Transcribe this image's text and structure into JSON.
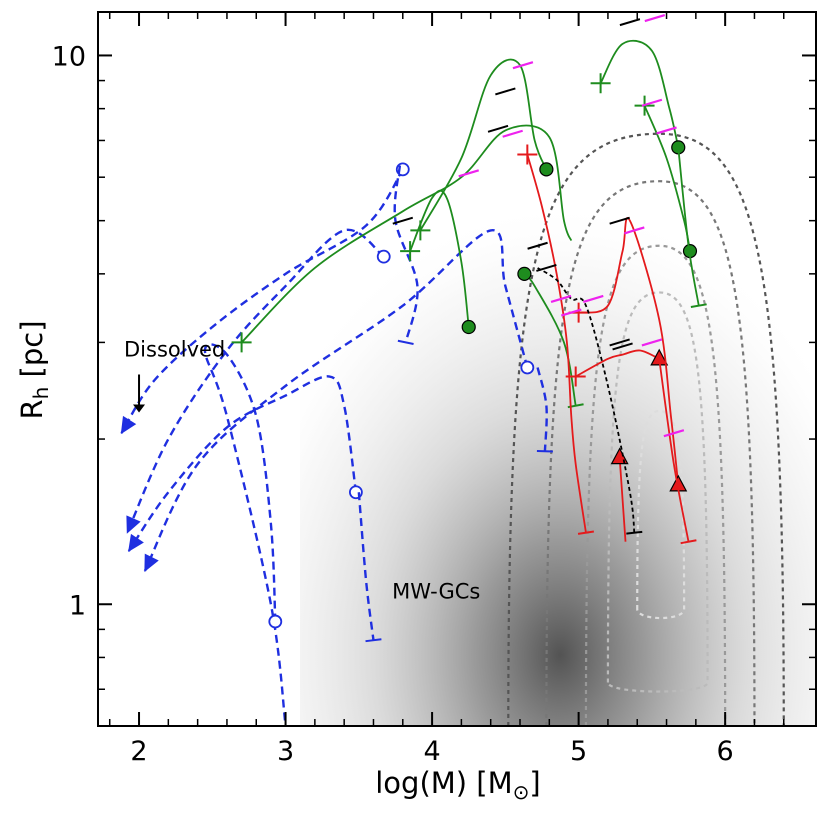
{
  "chart_data": {
    "type": "line",
    "title": "",
    "xlabel": "log(M) [M",
    "xlabel_suffix": "]",
    "xlabel_sub": "⊙",
    "ylabel": "R",
    "ylabel_sub": "h",
    "ylabel_suffix": " [pc]",
    "xlim": [
      1.72,
      6.62
    ],
    "ylim_log": [
      0.6,
      12.0
    ],
    "y_scale": "log",
    "x_ticks": [
      2,
      3,
      4,
      5,
      6
    ],
    "x_tick_labels": [
      "2",
      "3",
      "4",
      "5",
      "6"
    ],
    "y_ticks": [
      1,
      10
    ],
    "y_tick_labels": [
      "1",
      "10"
    ],
    "annotations": {
      "dissolved": "Dissolved",
      "mwgcs": "MW-GCs"
    },
    "annotation_positions": {
      "dissolved": [
        2.0,
        2.9
      ],
      "mwgcs": [
        4.0,
        1.05
      ]
    },
    "density_contours": {
      "center": [
        5.55,
        1.65
      ],
      "levels": [
        {
          "x": [
            4.52,
            6.4
          ],
          "y": [
            0.6,
            7.2
          ],
          "color": "#555555"
        },
        {
          "x": [
            4.78,
            6.2
          ],
          "y": [
            0.6,
            5.9
          ],
          "color": "#777777"
        },
        {
          "x": [
            5.05,
            6.0
          ],
          "y": [
            0.6,
            4.5
          ],
          "color": "#999999"
        },
        {
          "x": [
            5.2,
            5.88
          ],
          "y": [
            0.72,
            3.7
          ],
          "color": "#bbbbbb"
        },
        {
          "x": [
            5.4,
            5.72
          ],
          "y": [
            0.98,
            2.25
          ],
          "color": "#dddddd"
        }
      ]
    },
    "series": [
      {
        "name": "blue-dissolved-1",
        "color": "#1f2fe0",
        "style": "dashed",
        "x": [
          3.8,
          3.55,
          3.0,
          2.5,
          2.1,
          1.88
        ],
        "y": [
          6.2,
          4.9,
          4.0,
          3.2,
          2.55,
          2.05
        ],
        "start": "circle",
        "end": "arrow"
      },
      {
        "name": "blue-dissolved-2",
        "color": "#1f2fe0",
        "style": "dashed",
        "x": [
          3.67,
          3.4,
          3.0,
          2.6,
          2.2,
          1.92
        ],
        "y": [
          4.3,
          4.8,
          3.8,
          2.9,
          2.0,
          1.35
        ],
        "start": "circle",
        "end": "arrow"
      },
      {
        "name": "blue-dissolved-3",
        "color": "#1f2fe0",
        "style": "dashed",
        "x": [
          4.65,
          4.5,
          4.4,
          3.8,
          3.0,
          2.4,
          2.04
        ],
        "y": [
          2.7,
          3.8,
          4.8,
          3.5,
          2.5,
          1.8,
          1.15
        ],
        "start": "circle",
        "end": "arrow"
      },
      {
        "name": "blue-dissolved-4",
        "color": "#1f2fe0",
        "style": "dashed",
        "x": [
          3.48,
          3.4,
          3.3,
          3.0,
          2.6,
          2.2,
          1.93
        ],
        "y": [
          1.6,
          2.3,
          2.6,
          2.4,
          2.1,
          1.6,
          1.25
        ],
        "start": "circle",
        "end": "arrow"
      },
      {
        "name": "blue-short-1",
        "color": "#1f2fe0",
        "style": "dashed",
        "x": [
          2.93,
          2.9,
          2.8,
          2.6,
          2.45,
          2.6,
          2.9,
          3.0
        ],
        "y": [
          0.93,
          1.4,
          2.2,
          2.85,
          2.9,
          2.2,
          1.0,
          0.6
        ],
        "start": "circle",
        "end": "none"
      },
      {
        "name": "blue-short-2",
        "color": "#1f2fe0",
        "style": "dashed",
        "x": [
          3.78,
          3.75,
          3.9,
          3.82
        ],
        "y": [
          6.3,
          5.0,
          3.8,
          3.0
        ],
        "start": "none",
        "end": "bar"
      },
      {
        "name": "blue-short-3",
        "color": "#1f2fe0",
        "style": "dashed",
        "x": [
          4.72,
          4.78,
          4.77
        ],
        "y": [
          2.7,
          2.3,
          1.9
        ],
        "start": "none",
        "end": "bar"
      },
      {
        "name": "blue-short-4",
        "color": "#1f2fe0",
        "style": "dashed",
        "x": [
          3.5,
          3.55,
          3.6
        ],
        "y": [
          1.6,
          1.1,
          0.86
        ],
        "start": "none",
        "end": "bar"
      },
      {
        "name": "green-1",
        "color": "#1e8c1e",
        "style": "solid",
        "x": [
          2.7,
          3.2,
          3.8,
          4.2,
          4.5,
          4.8,
          4.9,
          4.95
        ],
        "y": [
          3.0,
          4.1,
          5.2,
          6.0,
          7.3,
          7.1,
          5.0,
          4.6
        ],
        "start": "plus",
        "end": "none"
      },
      {
        "name": "green-2",
        "color": "#1e8c1e",
        "style": "solid",
        "x": [
          3.85,
          4.0,
          4.1,
          4.2,
          4.25
        ],
        "y": [
          4.4,
          5.5,
          5.5,
          4.2,
          3.2
        ],
        "start": "plus",
        "end": "circle"
      },
      {
        "name": "green-3",
        "color": "#1e8c1e",
        "style": "solid",
        "x": [
          3.92,
          4.2,
          4.4,
          4.6,
          4.7,
          4.78
        ],
        "y": [
          4.8,
          6.5,
          9.2,
          9.6,
          7.0,
          6.2
        ],
        "start": "plus",
        "end": "circle"
      },
      {
        "name": "green-4",
        "color": "#1e8c1e",
        "style": "solid",
        "x": [
          4.63,
          4.7,
          4.9,
          4.98
        ],
        "y": [
          4.0,
          3.8,
          3.0,
          2.3
        ],
        "start": "circle",
        "end": "bar"
      },
      {
        "name": "green-5",
        "color": "#1e8c1e",
        "style": "solid",
        "x": [
          5.15,
          5.3,
          5.5,
          5.62,
          5.68
        ],
        "y": [
          8.9,
          10.5,
          10.2,
          8.0,
          6.8
        ],
        "start": "plus",
        "end": "circle"
      },
      {
        "name": "green-6",
        "color": "#1e8c1e",
        "style": "solid",
        "x": [
          5.45,
          5.6,
          5.72,
          5.76
        ],
        "y": [
          8.1,
          6.5,
          5.0,
          4.4
        ],
        "start": "plus",
        "end": "circle"
      },
      {
        "name": "green-7",
        "color": "#1e8c1e",
        "style": "solid",
        "x": [
          5.68,
          5.75,
          5.82
        ],
        "y": [
          6.8,
          4.5,
          3.5
        ],
        "start": "none",
        "end": "bar"
      },
      {
        "name": "red-1",
        "color": "#e41a1c",
        "style": "solid",
        "x": [
          4.65,
          4.75,
          4.85,
          4.92,
          4.95,
          4.98,
          5.05
        ],
        "y": [
          6.6,
          5.3,
          4.0,
          3.0,
          2.2,
          1.8,
          1.35
        ],
        "start": "plus",
        "end": "bar"
      },
      {
        "name": "red-2",
        "color": "#e41a1c",
        "style": "solid",
        "x": [
          4.98,
          5.2,
          5.3,
          5.42,
          5.55
        ],
        "y": [
          2.6,
          2.8,
          2.85,
          2.9,
          2.8
        ],
        "start": "plus",
        "end": "triangle"
      },
      {
        "name": "red-3",
        "color": "#e41a1c",
        "style": "solid",
        "x": [
          5.0,
          5.2,
          5.3,
          5.35,
          5.55,
          5.63,
          5.68
        ],
        "y": [
          3.4,
          3.5,
          4.4,
          5.0,
          3.3,
          2.2,
          1.65
        ],
        "start": "plus",
        "end": "triangle"
      },
      {
        "name": "red-4",
        "color": "#e41a1c",
        "style": "solid",
        "x": [
          5.55,
          5.65,
          5.75
        ],
        "y": [
          2.8,
          1.8,
          1.3
        ],
        "start": "none",
        "end": "bar"
      },
      {
        "name": "red-5",
        "color": "#e41a1c",
        "style": "solid",
        "x": [
          5.28,
          5.3,
          5.32
        ],
        "y": [
          1.85,
          1.55,
          1.3
        ],
        "start": "triangle",
        "end": "none"
      },
      {
        "name": "black-red-1",
        "color": "#000000",
        "style": "dashed",
        "x": [
          4.72,
          4.85,
          4.95,
          5.05,
          5.2,
          5.35,
          5.38
        ],
        "y": [
          4.1,
          3.9,
          3.6,
          3.5,
          2.5,
          1.6,
          1.35
        ],
        "start": "none",
        "end": "bar"
      }
    ],
    "black_ticks": [
      [
        3.8,
        5.0
      ],
      [
        4.5,
        8.6
      ],
      [
        4.45,
        7.35
      ],
      [
        4.72,
        4.5
      ],
      [
        4.78,
        4.1
      ],
      [
        5.28,
        5.0
      ],
      [
        5.35,
        11.5
      ],
      [
        5.28,
        3.0
      ],
      [
        5.3,
        2.95
      ]
    ],
    "magenta_ticks": [
      [
        4.25,
        6.1
      ],
      [
        4.55,
        7.2
      ],
      [
        4.62,
        9.6
      ],
      [
        4.88,
        3.6
      ],
      [
        4.95,
        3.4
      ],
      [
        5.1,
        3.6
      ],
      [
        5.38,
        4.8
      ],
      [
        5.5,
        3.0
      ],
      [
        5.5,
        8.2
      ],
      [
        5.52,
        11.7
      ],
      [
        5.6,
        7.3
      ],
      [
        5.65,
        2.05
      ]
    ]
  }
}
